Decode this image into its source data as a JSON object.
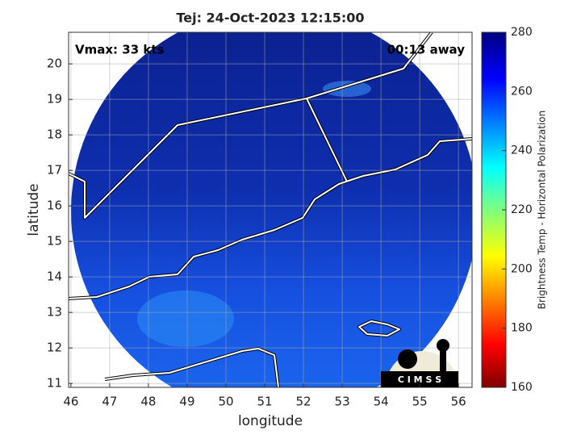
{
  "chart_data": {
    "type": "map",
    "title": "Tej: 24-Oct-2023 12:15:00",
    "annotations": [
      "Vmax: 33 kts",
      "00:13 away"
    ],
    "xlabel": "longitude",
    "ylabel": "latitude",
    "xlim": [
      45.94,
      56.35
    ],
    "xticks": [
      46,
      47,
      48,
      49,
      50,
      51,
      52,
      53,
      54,
      55,
      56
    ],
    "ylim": [
      10.89,
      20.89
    ],
    "yticks": [
      11,
      12,
      13,
      14,
      15,
      16,
      17,
      18,
      19,
      20
    ],
    "grid": true,
    "colorbar": {
      "label": "Brightness Temp - Horizontal Polarization",
      "clim": [
        160,
        280
      ],
      "ticks": [
        160,
        180,
        200,
        220,
        240,
        260,
        280
      ],
      "colormap": "jet"
    },
    "logo_text": "C I M S S"
  }
}
